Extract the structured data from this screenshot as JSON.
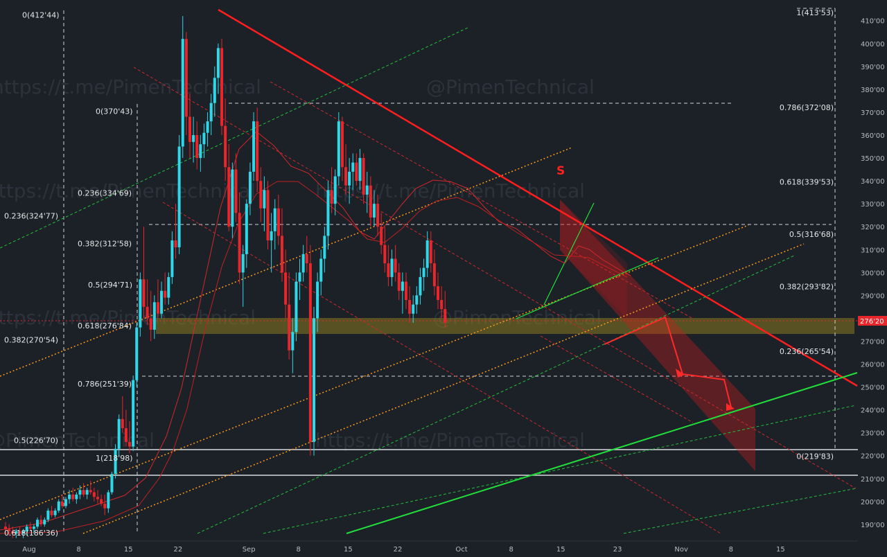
{
  "colors": {
    "background": "#1c2128",
    "up": "#2fd8e8",
    "down": "#e8262b",
    "trend_red": "#ff1e1e",
    "trend_green": "#22e03a",
    "orange": "#ff9a1a",
    "zone": "#8a7a1f",
    "down_channel": "#d21e1e",
    "grid_text": "#b8bcc4"
  },
  "watermarks": [
    "https://t.me/PimenTechnical",
    "@PimenTechnical"
  ],
  "signal_label": "S",
  "current_price": "276'20",
  "fib_labels_left": [
    {
      "text": "0(412'44)",
      "price": 412.44
    },
    {
      "text": "0(370'43)",
      "price": 370.43
    },
    {
      "text": "0.236(334'69)",
      "price": 334.69
    },
    {
      "text": "0.236(324'77)",
      "price": 324.77
    },
    {
      "text": "0.382(312'58)",
      "price": 312.58
    },
    {
      "text": "0.5(294'71)",
      "price": 294.71
    },
    {
      "text": "0.618(276'84)",
      "price": 276.84
    },
    {
      "text": "0.382(270'54)",
      "price": 270.54
    },
    {
      "text": "0.786(251'39)",
      "price": 251.39
    },
    {
      "text": "0.5(226'70)",
      "price": 226.7
    },
    {
      "text": "1(218'98)",
      "price": 218.98
    },
    {
      "text": "0.618(186'36)",
      "price": 186.36
    }
  ],
  "fib_labels_right": [
    {
      "text": "1(413'53)",
      "price": 413.53
    },
    {
      "text": "0.786(372'08)",
      "price": 372.08
    },
    {
      "text": "0.618(339'53)",
      "price": 339.53
    },
    {
      "text": "0.5(316'68)",
      "price": 316.68
    },
    {
      "text": "0.382(293'82)",
      "price": 293.82
    },
    {
      "text": "0.236(265'54)",
      "price": 265.54
    },
    {
      "text": "0(219'83)",
      "price": 219.83
    }
  ],
  "chart_data": {
    "type": "candlestick",
    "title": "",
    "xlabel": "",
    "ylabel": "",
    "ylim": [
      183,
      419
    ],
    "y_ticks": [
      190,
      200,
      210,
      220,
      230,
      240,
      250,
      260,
      270,
      280,
      290,
      300,
      310,
      320,
      330,
      340,
      350,
      360,
      370,
      380,
      390,
      400,
      410
    ],
    "y_tick_labels": [
      "190'00",
      "200'00",
      "210'00",
      "220'00",
      "230'00",
      "240'00",
      "250'00",
      "260'00",
      "270'00",
      "280'00",
      "290'00",
      "300'00",
      "310'00",
      "320'00",
      "330'00",
      "340'00",
      "350'00",
      "360'00",
      "370'00",
      "380'00",
      "390'00",
      "400'00",
      "410'00"
    ],
    "x_ticks": [
      "Aug",
      "8",
      "15",
      "22",
      "Sep",
      "8",
      "15",
      "22",
      "Oct",
      "8",
      "15",
      "23",
      "Nov",
      "8",
      "15"
    ],
    "x_tick_days": [
      0,
      7,
      14,
      21,
      31,
      38,
      45,
      52,
      61,
      68,
      75,
      83,
      92,
      99,
      106
    ],
    "date_range": [
      "Aug 1",
      "Nov 20"
    ],
    "grid": false,
    "candles": [
      [
        0.0,
        189,
        191,
        186,
        188
      ],
      [
        0.5,
        188,
        190,
        185,
        187
      ],
      [
        1.0,
        187,
        189,
        184,
        186
      ],
      [
        1.5,
        186,
        188,
        184,
        187
      ],
      [
        2.0,
        187,
        189,
        185,
        186
      ],
      [
        2.5,
        186,
        188,
        184,
        187
      ],
      [
        3.0,
        187,
        190,
        185,
        189
      ],
      [
        3.5,
        189,
        191,
        187,
        188
      ],
      [
        4.0,
        188,
        190,
        186,
        189
      ],
      [
        4.5,
        189,
        193,
        188,
        192
      ],
      [
        5.0,
        192,
        194,
        189,
        190
      ],
      [
        5.5,
        190,
        193,
        189,
        192
      ],
      [
        6.0,
        192,
        197,
        191,
        196
      ],
      [
        6.5,
        196,
        198,
        193,
        194
      ],
      [
        7.0,
        194,
        197,
        193,
        196
      ],
      [
        7.5,
        196,
        201,
        195,
        200
      ],
      [
        8.0,
        200,
        203,
        197,
        198
      ],
      [
        8.5,
        198,
        202,
        197,
        201
      ],
      [
        9.0,
        201,
        205,
        199,
        203
      ],
      [
        9.5,
        203,
        206,
        200,
        201
      ],
      [
        10.0,
        201,
        204,
        199,
        203
      ],
      [
        10.5,
        203,
        207,
        201,
        205
      ],
      [
        11.0,
        205,
        208,
        202,
        203
      ],
      [
        11.5,
        203,
        206,
        201,
        205
      ],
      [
        12.0,
        205,
        209,
        203,
        204
      ],
      [
        12.5,
        204,
        206,
        200,
        202
      ],
      [
        13.0,
        202,
        205,
        199,
        201
      ],
      [
        13.5,
        201,
        203,
        198,
        199
      ],
      [
        14.0,
        199,
        203,
        194,
        197
      ],
      [
        14.5,
        197,
        205,
        195,
        204
      ],
      [
        15.0,
        204,
        213,
        203,
        212
      ],
      [
        15.5,
        212,
        225,
        210,
        223
      ],
      [
        16.0,
        223,
        238,
        220,
        236
      ],
      [
        16.5,
        236,
        246,
        230,
        232
      ],
      [
        17.0,
        232,
        240,
        224,
        226
      ],
      [
        17.5,
        226,
        235,
        221,
        224
      ],
      [
        18.0,
        224,
        255,
        222,
        253
      ],
      [
        18.5,
        253,
        278,
        250,
        276
      ],
      [
        19.0,
        276,
        300,
        272,
        297
      ],
      [
        19.5,
        297,
        320,
        280,
        285
      ],
      [
        20.0,
        285,
        297,
        277,
        280
      ],
      [
        20.5,
        280,
        292,
        270,
        275
      ],
      [
        21.0,
        275,
        290,
        271,
        287
      ],
      [
        21.5,
        287,
        297,
        280,
        282
      ],
      [
        22.0,
        282,
        296,
        280,
        292
      ],
      [
        22.5,
        292,
        300,
        286,
        289
      ],
      [
        23.0,
        289,
        300,
        286,
        298
      ],
      [
        23.5,
        298,
        318,
        295,
        314
      ],
      [
        24.0,
        314,
        330,
        306,
        311
      ],
      [
        24.5,
        311,
        360,
        308,
        355
      ],
      [
        25.0,
        355,
        412,
        350,
        402
      ],
      [
        25.5,
        402,
        405,
        360,
        368
      ],
      [
        26.0,
        368,
        378,
        350,
        357
      ],
      [
        26.5,
        357,
        368,
        348,
        360
      ],
      [
        27.0,
        360,
        366,
        345,
        350
      ],
      [
        27.5,
        350,
        360,
        344,
        356
      ],
      [
        28.0,
        356,
        365,
        350,
        361
      ],
      [
        28.5,
        361,
        370,
        355,
        366
      ],
      [
        29.0,
        366,
        378,
        360,
        374
      ],
      [
        29.5,
        374,
        390,
        368,
        385
      ],
      [
        30.0,
        385,
        400,
        378,
        398
      ],
      [
        30.5,
        398,
        402,
        360,
        364
      ],
      [
        31.0,
        364,
        376,
        340,
        346
      ],
      [
        31.5,
        346,
        356,
        318,
        320
      ],
      [
        32.0,
        320,
        348,
        315,
        345
      ],
      [
        32.5,
        345,
        352,
        322,
        326
      ],
      [
        33.0,
        326,
        335,
        295,
        300
      ],
      [
        33.5,
        300,
        312,
        285,
        308
      ],
      [
        34.0,
        308,
        332,
        302,
        330
      ],
      [
        34.5,
        330,
        348,
        325,
        344
      ],
      [
        35.0,
        344,
        370,
        340,
        366
      ],
      [
        35.5,
        366,
        372,
        335,
        340
      ],
      [
        36.0,
        340,
        346,
        322,
        328
      ],
      [
        36.5,
        328,
        342,
        318,
        336
      ],
      [
        37.0,
        336,
        340,
        310,
        314
      ],
      [
        37.5,
        314,
        326,
        300,
        318
      ],
      [
        38.0,
        318,
        332,
        310,
        328
      ],
      [
        38.5,
        328,
        334,
        312,
        316
      ],
      [
        39.0,
        316,
        328,
        296,
        300
      ],
      [
        39.5,
        300,
        310,
        280,
        286
      ],
      [
        40.0,
        286,
        300,
        262,
        266
      ],
      [
        40.5,
        266,
        280,
        256,
        274
      ],
      [
        41.0,
        274,
        300,
        270,
        296
      ],
      [
        41.5,
        296,
        306,
        288,
        300
      ],
      [
        42.0,
        300,
        312,
        296,
        308
      ],
      [
        42.5,
        308,
        316,
        300,
        304
      ],
      [
        43.0,
        304,
        312,
        220,
        226
      ],
      [
        43.5,
        226,
        285,
        220,
        280
      ],
      [
        44.0,
        280,
        300,
        274,
        296
      ],
      [
        44.5,
        296,
        310,
        290,
        306
      ],
      [
        45.0,
        306,
        320,
        300,
        316
      ],
      [
        45.5,
        316,
        340,
        310,
        336
      ],
      [
        46.0,
        336,
        346,
        326,
        330
      ],
      [
        46.5,
        330,
        345,
        325,
        342
      ],
      [
        47.0,
        342,
        370,
        338,
        366
      ],
      [
        47.5,
        366,
        368,
        340,
        346
      ],
      [
        48.0,
        346,
        356,
        334,
        338
      ],
      [
        48.5,
        338,
        350,
        330,
        344
      ],
      [
        49.0,
        344,
        352,
        336,
        348
      ],
      [
        49.5,
        348,
        352,
        338,
        340
      ],
      [
        50.0,
        340,
        354,
        336,
        350
      ],
      [
        50.5,
        350,
        352,
        330,
        334
      ],
      [
        51.0,
        334,
        344,
        326,
        338
      ],
      [
        51.5,
        338,
        342,
        320,
        324
      ],
      [
        52.0,
        324,
        336,
        320,
        330
      ],
      [
        52.5,
        330,
        334,
        316,
        320
      ],
      [
        53.0,
        320,
        326,
        308,
        312
      ],
      [
        53.5,
        312,
        320,
        300,
        304
      ],
      [
        54.0,
        304,
        312,
        294,
        298
      ],
      [
        54.5,
        298,
        310,
        294,
        306
      ],
      [
        55.0,
        306,
        312,
        296,
        300
      ],
      [
        55.5,
        300,
        304,
        288,
        292
      ],
      [
        56.0,
        292,
        300,
        282,
        296
      ],
      [
        56.5,
        296,
        300,
        284,
        288
      ],
      [
        57.0,
        288,
        294,
        278,
        282
      ],
      [
        57.5,
        282,
        290,
        278,
        286
      ],
      [
        58.0,
        286,
        294,
        282,
        290
      ],
      [
        58.5,
        290,
        302,
        286,
        298
      ],
      [
        59.0,
        298,
        306,
        292,
        302
      ],
      [
        59.5,
        302,
        318,
        298,
        314
      ],
      [
        60.0,
        314,
        318,
        300,
        304
      ],
      [
        60.5,
        304,
        310,
        290,
        294
      ],
      [
        61.0,
        294,
        300,
        284,
        288
      ],
      [
        61.5,
        288,
        294,
        280,
        284
      ],
      [
        62.0,
        284,
        292,
        276,
        278
      ]
    ]
  }
}
